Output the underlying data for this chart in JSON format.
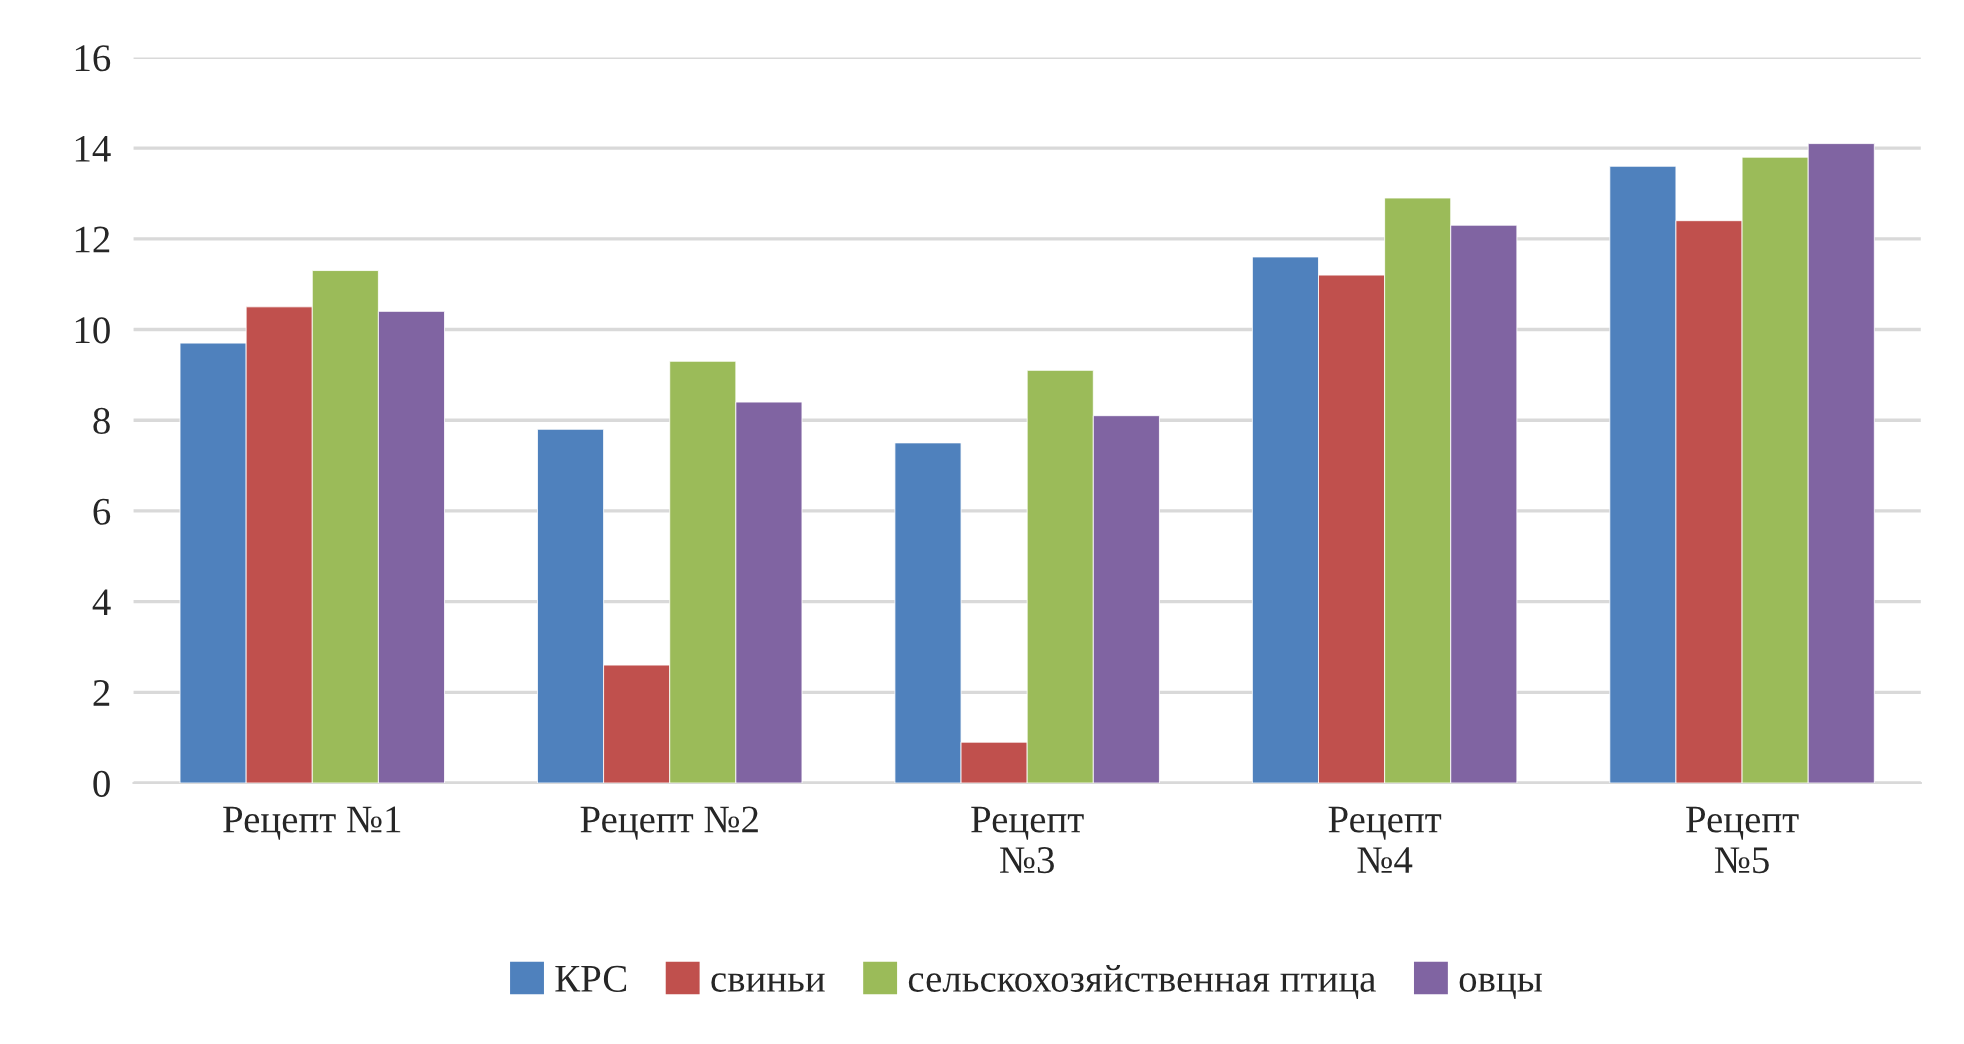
{
  "chart_data": {
    "type": "bar",
    "categories": [
      "Рецепт №1",
      "Рецепт №2",
      "Рецепт\n№3",
      "Рецепт\n№4",
      "Рецепт\n№5"
    ],
    "series": [
      {
        "name": "КРС",
        "color": "#4f81bd",
        "values": [
          9.7,
          7.8,
          7.5,
          11.6,
          13.6
        ]
      },
      {
        "name": "свиньи",
        "color": "#c0504d",
        "values": [
          10.5,
          2.6,
          0.9,
          11.2,
          12.4
        ]
      },
      {
        "name": "сельскохозяйственная птица",
        "color": "#9bbb59",
        "values": [
          11.3,
          9.3,
          9.1,
          12.9,
          13.8
        ]
      },
      {
        "name": "овцы",
        "color": "#8064a2",
        "values": [
          10.4,
          8.4,
          8.1,
          12.3,
          14.1
        ]
      }
    ],
    "ylim": [
      0,
      16
    ],
    "yticks": [
      0,
      2,
      4,
      6,
      8,
      10,
      12,
      14,
      16
    ],
    "grid": "y",
    "legend": "bottom"
  }
}
